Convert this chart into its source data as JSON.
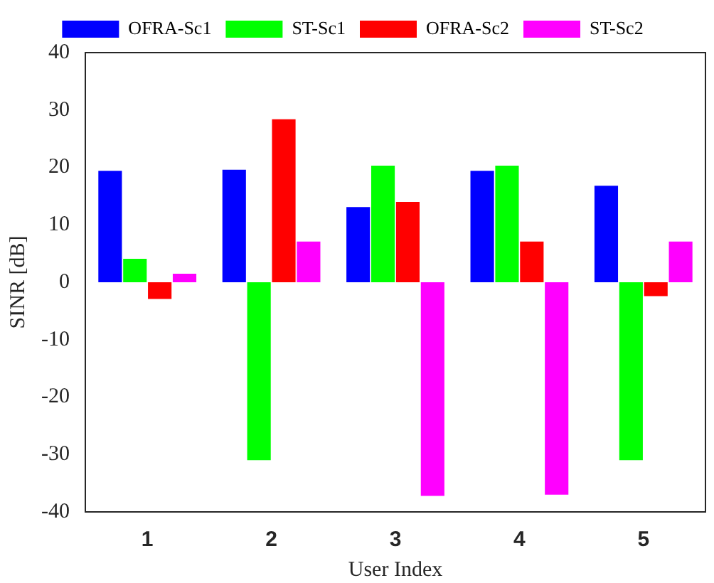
{
  "chart_data": {
    "type": "bar",
    "xlabel": "User Index",
    "ylabel": "SINR [dB]",
    "categories": [
      "1",
      "2",
      "3",
      "4",
      "5"
    ],
    "series": [
      {
        "name": "OFRA-Sc1",
        "color": "#0000ff",
        "values": [
          19.4,
          19.6,
          13.1,
          19.4,
          16.8
        ]
      },
      {
        "name": "ST-Sc1",
        "color": "#00ff00",
        "values": [
          4.1,
          -31,
          20.3,
          20.3,
          -31
        ]
      },
      {
        "name": "OFRA-Sc2",
        "color": "#ff0000",
        "values": [
          -2.9,
          28.4,
          14.0,
          7.1,
          -2.4
        ]
      },
      {
        "name": "ST-Sc2",
        "color": "#ff00ff",
        "values": [
          1.5,
          7.1,
          -37.2,
          -37,
          7.1
        ]
      }
    ],
    "ylim": [
      -40,
      40
    ],
    "yticks": [
      -40,
      -30,
      -20,
      -10,
      0,
      10,
      20,
      30,
      40
    ],
    "grid": false,
    "legend": "top"
  }
}
